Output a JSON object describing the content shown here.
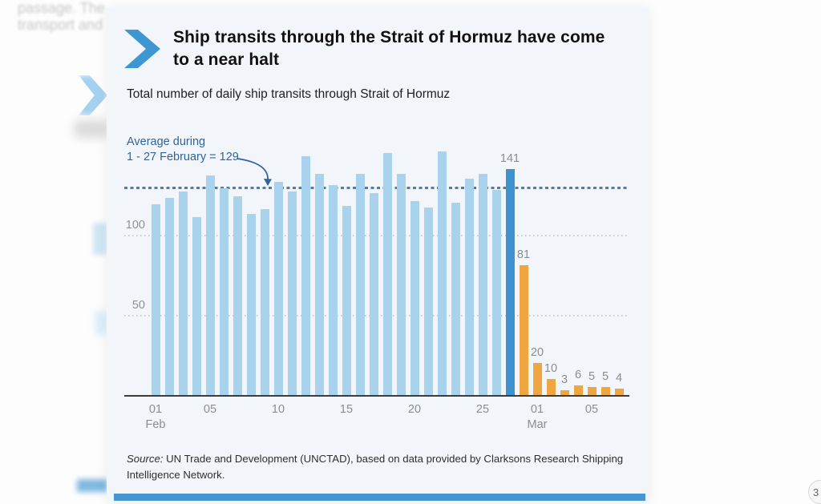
{
  "page": {
    "background_text_line1": "passage. The",
    "background_text_line2": "transport and",
    "page_number": "3"
  },
  "card": {
    "title": "Ship transits through the Strait of Hormuz have come to a near halt",
    "subtitle": "Total number of daily ship transits through Strait of Hormuz",
    "source_prefix": "Source:",
    "source_rest": " UN Trade and Development (UNCTAD), based on data provided by Clarksons Research Shipping Intelligence Network."
  },
  "chart_data": {
    "type": "bar",
    "title": "Total number of daily ship transits through Strait of Hormuz",
    "xlabel": "",
    "ylabel": "",
    "ylim": [
      0,
      160
    ],
    "yticks": [
      50,
      100
    ],
    "grid": "dotted horizontal",
    "categories": [
      "Feb 01",
      "Feb 02",
      "Feb 03",
      "Feb 04",
      "Feb 05",
      "Feb 06",
      "Feb 07",
      "Feb 08",
      "Feb 09",
      "Feb 10",
      "Feb 11",
      "Feb 12",
      "Feb 13",
      "Feb 14",
      "Feb 15",
      "Feb 16",
      "Feb 17",
      "Feb 18",
      "Feb 19",
      "Feb 20",
      "Feb 21",
      "Feb 22",
      "Feb 23",
      "Feb 24",
      "Feb 25",
      "Feb 26",
      "Feb 27",
      "Feb 28",
      "Mar 01",
      "Mar 02",
      "Mar 03",
      "Mar 04",
      "Mar 05",
      "Mar 06",
      "Mar 07"
    ],
    "series": [
      {
        "name": "Daily ship transits",
        "values": [
          119,
          123,
          127,
          111,
          137,
          129,
          124,
          113,
          116,
          133,
          127,
          149,
          138,
          131,
          118,
          138,
          126,
          151,
          138,
          121,
          117,
          152,
          120,
          135,
          138,
          128,
          141,
          81,
          20,
          10,
          3,
          6,
          5,
          5,
          4
        ]
      }
    ],
    "segments": {
      "normal": {
        "range": "Feb 01 - Feb 26",
        "color": "#a9d3ec"
      },
      "highlight": {
        "range": "Feb 27",
        "value": 141,
        "color": "#3e93ce"
      },
      "drop": {
        "range": "Feb 28 - Mar 07",
        "values": [
          81,
          20,
          10,
          3,
          6,
          5,
          5,
          4
        ],
        "color": "#f0a640"
      }
    },
    "highlight_index": 26,
    "drop_start_index": 27,
    "value_labels_from_index": 26,
    "average_line": {
      "value": 129,
      "style": "dotted",
      "color": "#4b7db3"
    },
    "annotation": {
      "line1": "Average during",
      "line2": "1 - 27 February = 129"
    },
    "xticks": [
      {
        "index": 0,
        "label": "01",
        "month": "Feb"
      },
      {
        "index": 4,
        "label": "05"
      },
      {
        "index": 9,
        "label": "10"
      },
      {
        "index": 14,
        "label": "15"
      },
      {
        "index": 19,
        "label": "20"
      },
      {
        "index": 24,
        "label": "25"
      },
      {
        "index": 28,
        "label": "01",
        "month": "Mar"
      },
      {
        "index": 32,
        "label": "05"
      }
    ],
    "legend": "none"
  },
  "colors": {
    "card_background": "#f2f6fa",
    "chevron_blue": "#3e97d3",
    "bar_light_blue": "#a9d3ec",
    "bar_dark_blue": "#3e93ce",
    "bar_orange": "#f0a640",
    "average_line_blue": "#4b7db3",
    "annotation_blue": "#2f639c",
    "footer_bar_blue": "#4795d1",
    "axis_gray": "#8c8c8c"
  }
}
